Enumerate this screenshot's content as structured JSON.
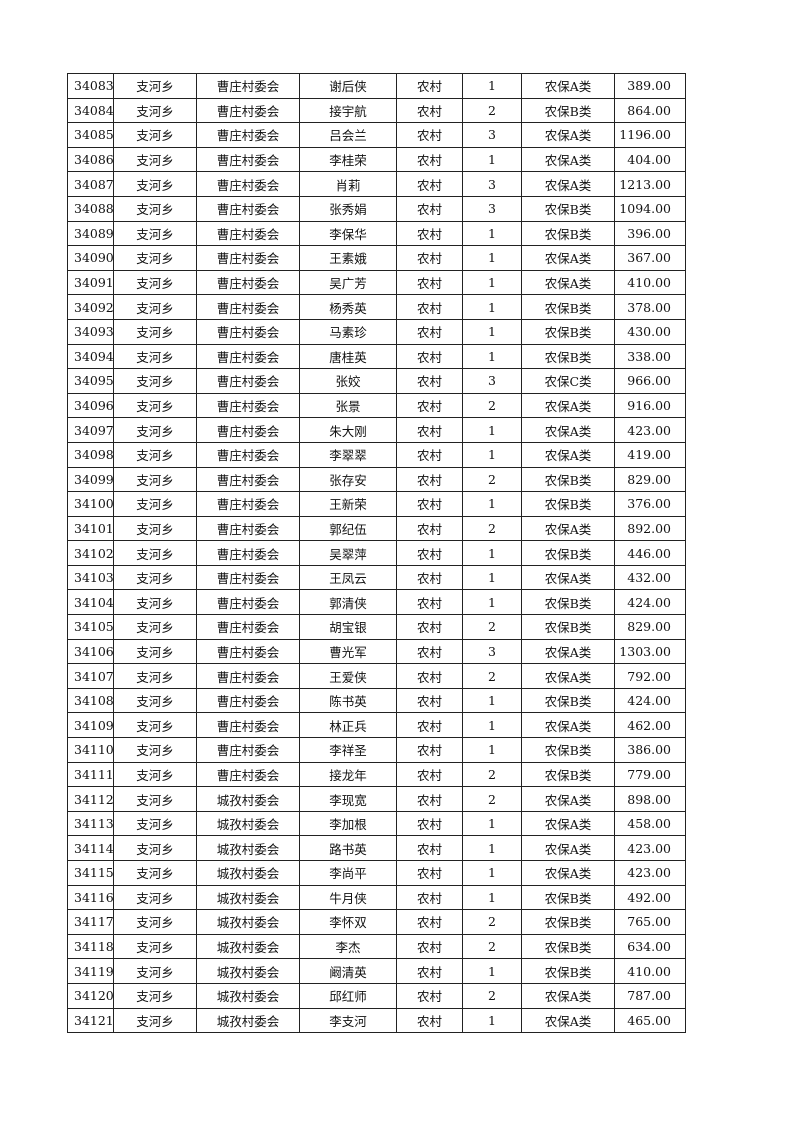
{
  "rows": [
    [
      "34083",
      "支河乡",
      "曹庄村委会",
      "谢后侠",
      "农村",
      "1",
      "农保A类",
      "389.00"
    ],
    [
      "34084",
      "支河乡",
      "曹庄村委会",
      "接宇航",
      "农村",
      "2",
      "农保B类",
      "864.00"
    ],
    [
      "34085",
      "支河乡",
      "曹庄村委会",
      "吕会兰",
      "农村",
      "3",
      "农保A类",
      "1196.00"
    ],
    [
      "34086",
      "支河乡",
      "曹庄村委会",
      "李桂荣",
      "农村",
      "1",
      "农保A类",
      "404.00"
    ],
    [
      "34087",
      "支河乡",
      "曹庄村委会",
      "肖莉",
      "农村",
      "3",
      "农保A类",
      "1213.00"
    ],
    [
      "34088",
      "支河乡",
      "曹庄村委会",
      "张秀娟",
      "农村",
      "3",
      "农保B类",
      "1094.00"
    ],
    [
      "34089",
      "支河乡",
      "曹庄村委会",
      "李保华",
      "农村",
      "1",
      "农保B类",
      "396.00"
    ],
    [
      "34090",
      "支河乡",
      "曹庄村委会",
      "王素娥",
      "农村",
      "1",
      "农保A类",
      "367.00"
    ],
    [
      "34091",
      "支河乡",
      "曹庄村委会",
      "吴广芳",
      "农村",
      "1",
      "农保A类",
      "410.00"
    ],
    [
      "34092",
      "支河乡",
      "曹庄村委会",
      "杨秀英",
      "农村",
      "1",
      "农保B类",
      "378.00"
    ],
    [
      "34093",
      "支河乡",
      "曹庄村委会",
      "马素珍",
      "农村",
      "1",
      "农保B类",
      "430.00"
    ],
    [
      "34094",
      "支河乡",
      "曹庄村委会",
      "唐桂英",
      "农村",
      "1",
      "农保B类",
      "338.00"
    ],
    [
      "34095",
      "支河乡",
      "曹庄村委会",
      "张姣",
      "农村",
      "3",
      "农保C类",
      "966.00"
    ],
    [
      "34096",
      "支河乡",
      "曹庄村委会",
      "张景",
      "农村",
      "2",
      "农保A类",
      "916.00"
    ],
    [
      "34097",
      "支河乡",
      "曹庄村委会",
      "朱大刚",
      "农村",
      "1",
      "农保A类",
      "423.00"
    ],
    [
      "34098",
      "支河乡",
      "曹庄村委会",
      "李翠翠",
      "农村",
      "1",
      "农保A类",
      "419.00"
    ],
    [
      "34099",
      "支河乡",
      "曹庄村委会",
      "张存安",
      "农村",
      "2",
      "农保B类",
      "829.00"
    ],
    [
      "34100",
      "支河乡",
      "曹庄村委会",
      "王新荣",
      "农村",
      "1",
      "农保B类",
      "376.00"
    ],
    [
      "34101",
      "支河乡",
      "曹庄村委会",
      "郭纪伍",
      "农村",
      "2",
      "农保A类",
      "892.00"
    ],
    [
      "34102",
      "支河乡",
      "曹庄村委会",
      "吴翠萍",
      "农村",
      "1",
      "农保B类",
      "446.00"
    ],
    [
      "34103",
      "支河乡",
      "曹庄村委会",
      "王凤云",
      "农村",
      "1",
      "农保A类",
      "432.00"
    ],
    [
      "34104",
      "支河乡",
      "曹庄村委会",
      "郭清侠",
      "农村",
      "1",
      "农保B类",
      "424.00"
    ],
    [
      "34105",
      "支河乡",
      "曹庄村委会",
      "胡宝银",
      "农村",
      "2",
      "农保B类",
      "829.00"
    ],
    [
      "34106",
      "支河乡",
      "曹庄村委会",
      "曹光军",
      "农村",
      "3",
      "农保A类",
      "1303.00"
    ],
    [
      "34107",
      "支河乡",
      "曹庄村委会",
      "王爱侠",
      "农村",
      "2",
      "农保A类",
      "792.00"
    ],
    [
      "34108",
      "支河乡",
      "曹庄村委会",
      "陈书英",
      "农村",
      "1",
      "农保B类",
      "424.00"
    ],
    [
      "34109",
      "支河乡",
      "曹庄村委会",
      "林正兵",
      "农村",
      "1",
      "农保A类",
      "462.00"
    ],
    [
      "34110",
      "支河乡",
      "曹庄村委会",
      "李祥圣",
      "农村",
      "1",
      "农保B类",
      "386.00"
    ],
    [
      "34111",
      "支河乡",
      "曹庄村委会",
      "接龙年",
      "农村",
      "2",
      "农保B类",
      "779.00"
    ],
    [
      "34112",
      "支河乡",
      "城孜村委会",
      "李现宽",
      "农村",
      "2",
      "农保A类",
      "898.00"
    ],
    [
      "34113",
      "支河乡",
      "城孜村委会",
      "李加根",
      "农村",
      "1",
      "农保A类",
      "458.00"
    ],
    [
      "34114",
      "支河乡",
      "城孜村委会",
      "路书英",
      "农村",
      "1",
      "农保A类",
      "423.00"
    ],
    [
      "34115",
      "支河乡",
      "城孜村委会",
      "李尚平",
      "农村",
      "1",
      "农保A类",
      "423.00"
    ],
    [
      "34116",
      "支河乡",
      "城孜村委会",
      "牛月侠",
      "农村",
      "1",
      "农保B类",
      "492.00"
    ],
    [
      "34117",
      "支河乡",
      "城孜村委会",
      "李怀双",
      "农村",
      "2",
      "农保B类",
      "765.00"
    ],
    [
      "34118",
      "支河乡",
      "城孜村委会",
      "李杰",
      "农村",
      "2",
      "农保B类",
      "634.00"
    ],
    [
      "34119",
      "支河乡",
      "城孜村委会",
      "阚清英",
      "农村",
      "1",
      "农保B类",
      "410.00"
    ],
    [
      "34120",
      "支河乡",
      "城孜村委会",
      "邱红师",
      "农村",
      "2",
      "农保A类",
      "787.00"
    ],
    [
      "34121",
      "支河乡",
      "城孜村委会",
      "李支河",
      "农村",
      "1",
      "农保A类",
      "465.00"
    ]
  ]
}
